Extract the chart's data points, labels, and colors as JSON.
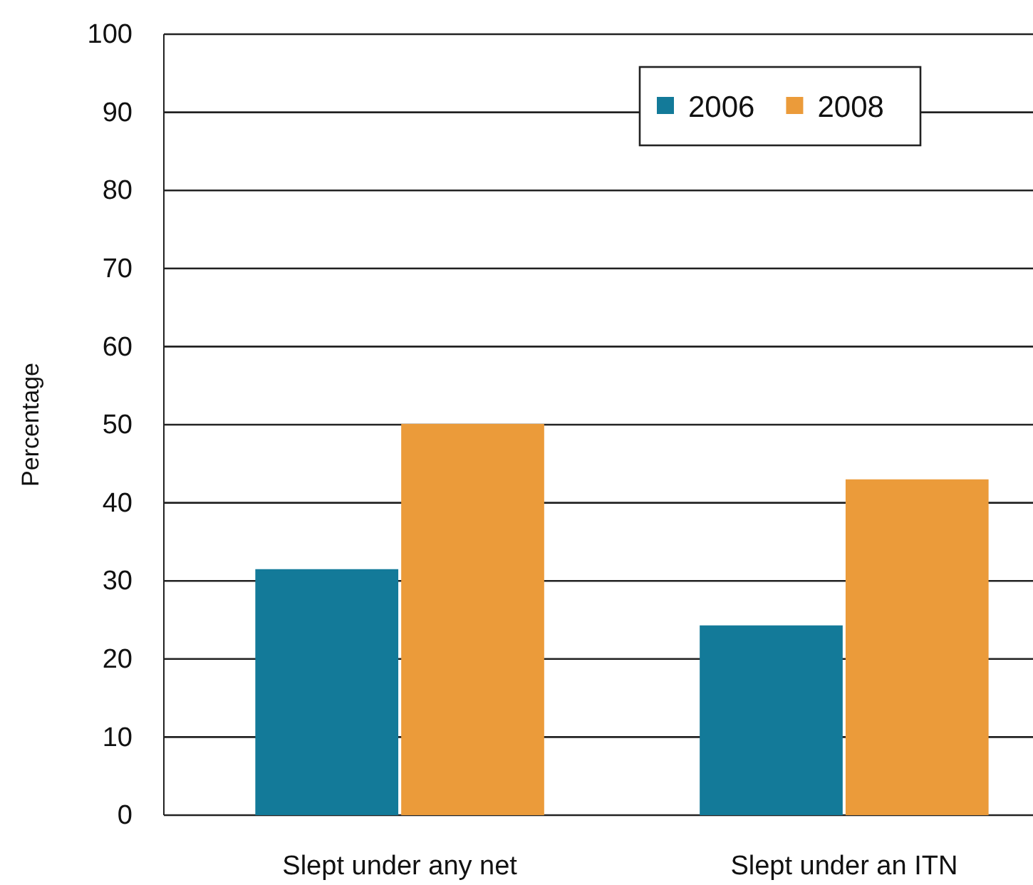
{
  "chart_data": {
    "type": "bar",
    "ylabel": "Percentage",
    "categories": [
      "Slept under any net",
      "Slept under an ITN"
    ],
    "series": [
      {
        "name": "2006",
        "color": "#137a99",
        "values": [
          31.5,
          24.3
        ]
      },
      {
        "name": "2008",
        "color": "#eb9b3a",
        "values": [
          50.1,
          43.0
        ]
      }
    ],
    "ylim": [
      0,
      100
    ],
    "yticks": [
      0,
      10,
      20,
      30,
      40,
      50,
      60,
      70,
      80,
      90,
      100
    ],
    "grid": "y",
    "legend": "top right"
  }
}
